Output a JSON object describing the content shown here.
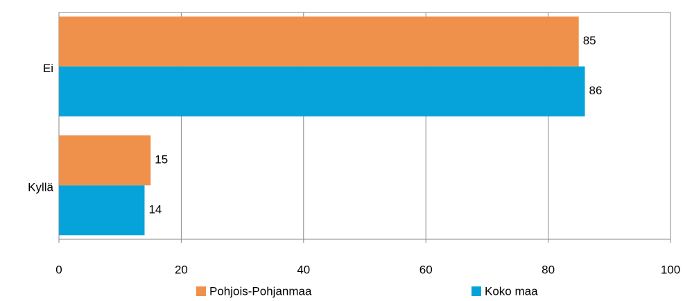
{
  "chart_data": {
    "type": "hbar",
    "categories": [
      "Ei",
      "Kyllä"
    ],
    "series": [
      {
        "name": "Pohjois-Pohjanmaa",
        "color": "#f0914b",
        "values": [
          85,
          15
        ]
      },
      {
        "name": "Koko maa",
        "color": "#05a3da",
        "values": [
          86,
          14
        ]
      }
    ],
    "xlim": [
      0,
      100
    ],
    "xticks": [
      0,
      20,
      40,
      60,
      80,
      100
    ],
    "grid": true,
    "legend": "bottom"
  }
}
